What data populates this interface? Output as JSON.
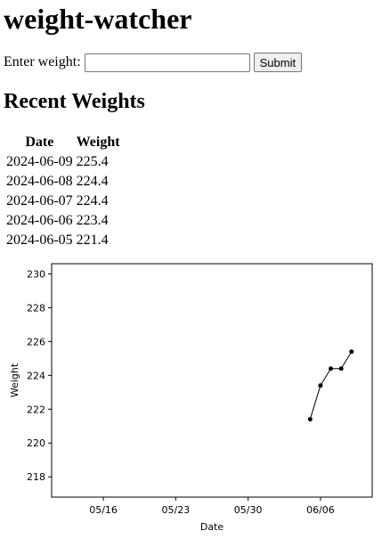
{
  "app": {
    "title": "weight-watcher"
  },
  "form": {
    "label": "Enter weight:",
    "input_value": "",
    "submit_label": "Submit"
  },
  "recent": {
    "heading": "Recent Weights",
    "columns": [
      "Date",
      "Weight"
    ],
    "rows": [
      [
        "2024-06-09",
        "225.4"
      ],
      [
        "2024-06-08",
        "224.4"
      ],
      [
        "2024-06-07",
        "224.4"
      ],
      [
        "2024-06-06",
        "223.4"
      ],
      [
        "2024-06-05",
        "221.4"
      ]
    ]
  },
  "chart_data": {
    "type": "line",
    "xlabel": "Date",
    "ylabel": "Weight",
    "x": [
      "2024-06-05",
      "2024-06-06",
      "2024-06-07",
      "2024-06-08",
      "2024-06-09"
    ],
    "values": [
      221.4,
      223.4,
      224.4,
      224.4,
      225.4
    ],
    "xlim": [
      "2024-05-11",
      "2024-06-11"
    ],
    "ylim": [
      216.8,
      230.6
    ],
    "yticks": [
      218,
      220,
      222,
      224,
      226,
      228,
      230
    ],
    "xticks": [
      {
        "date": "2024-05-16",
        "label": "05/16"
      },
      {
        "date": "2024-05-23",
        "label": "05/23"
      },
      {
        "date": "2024-05-30",
        "label": "05/30"
      },
      {
        "date": "2024-06-06",
        "label": "06/06"
      }
    ],
    "grid": false,
    "line_color": "#000000"
  }
}
